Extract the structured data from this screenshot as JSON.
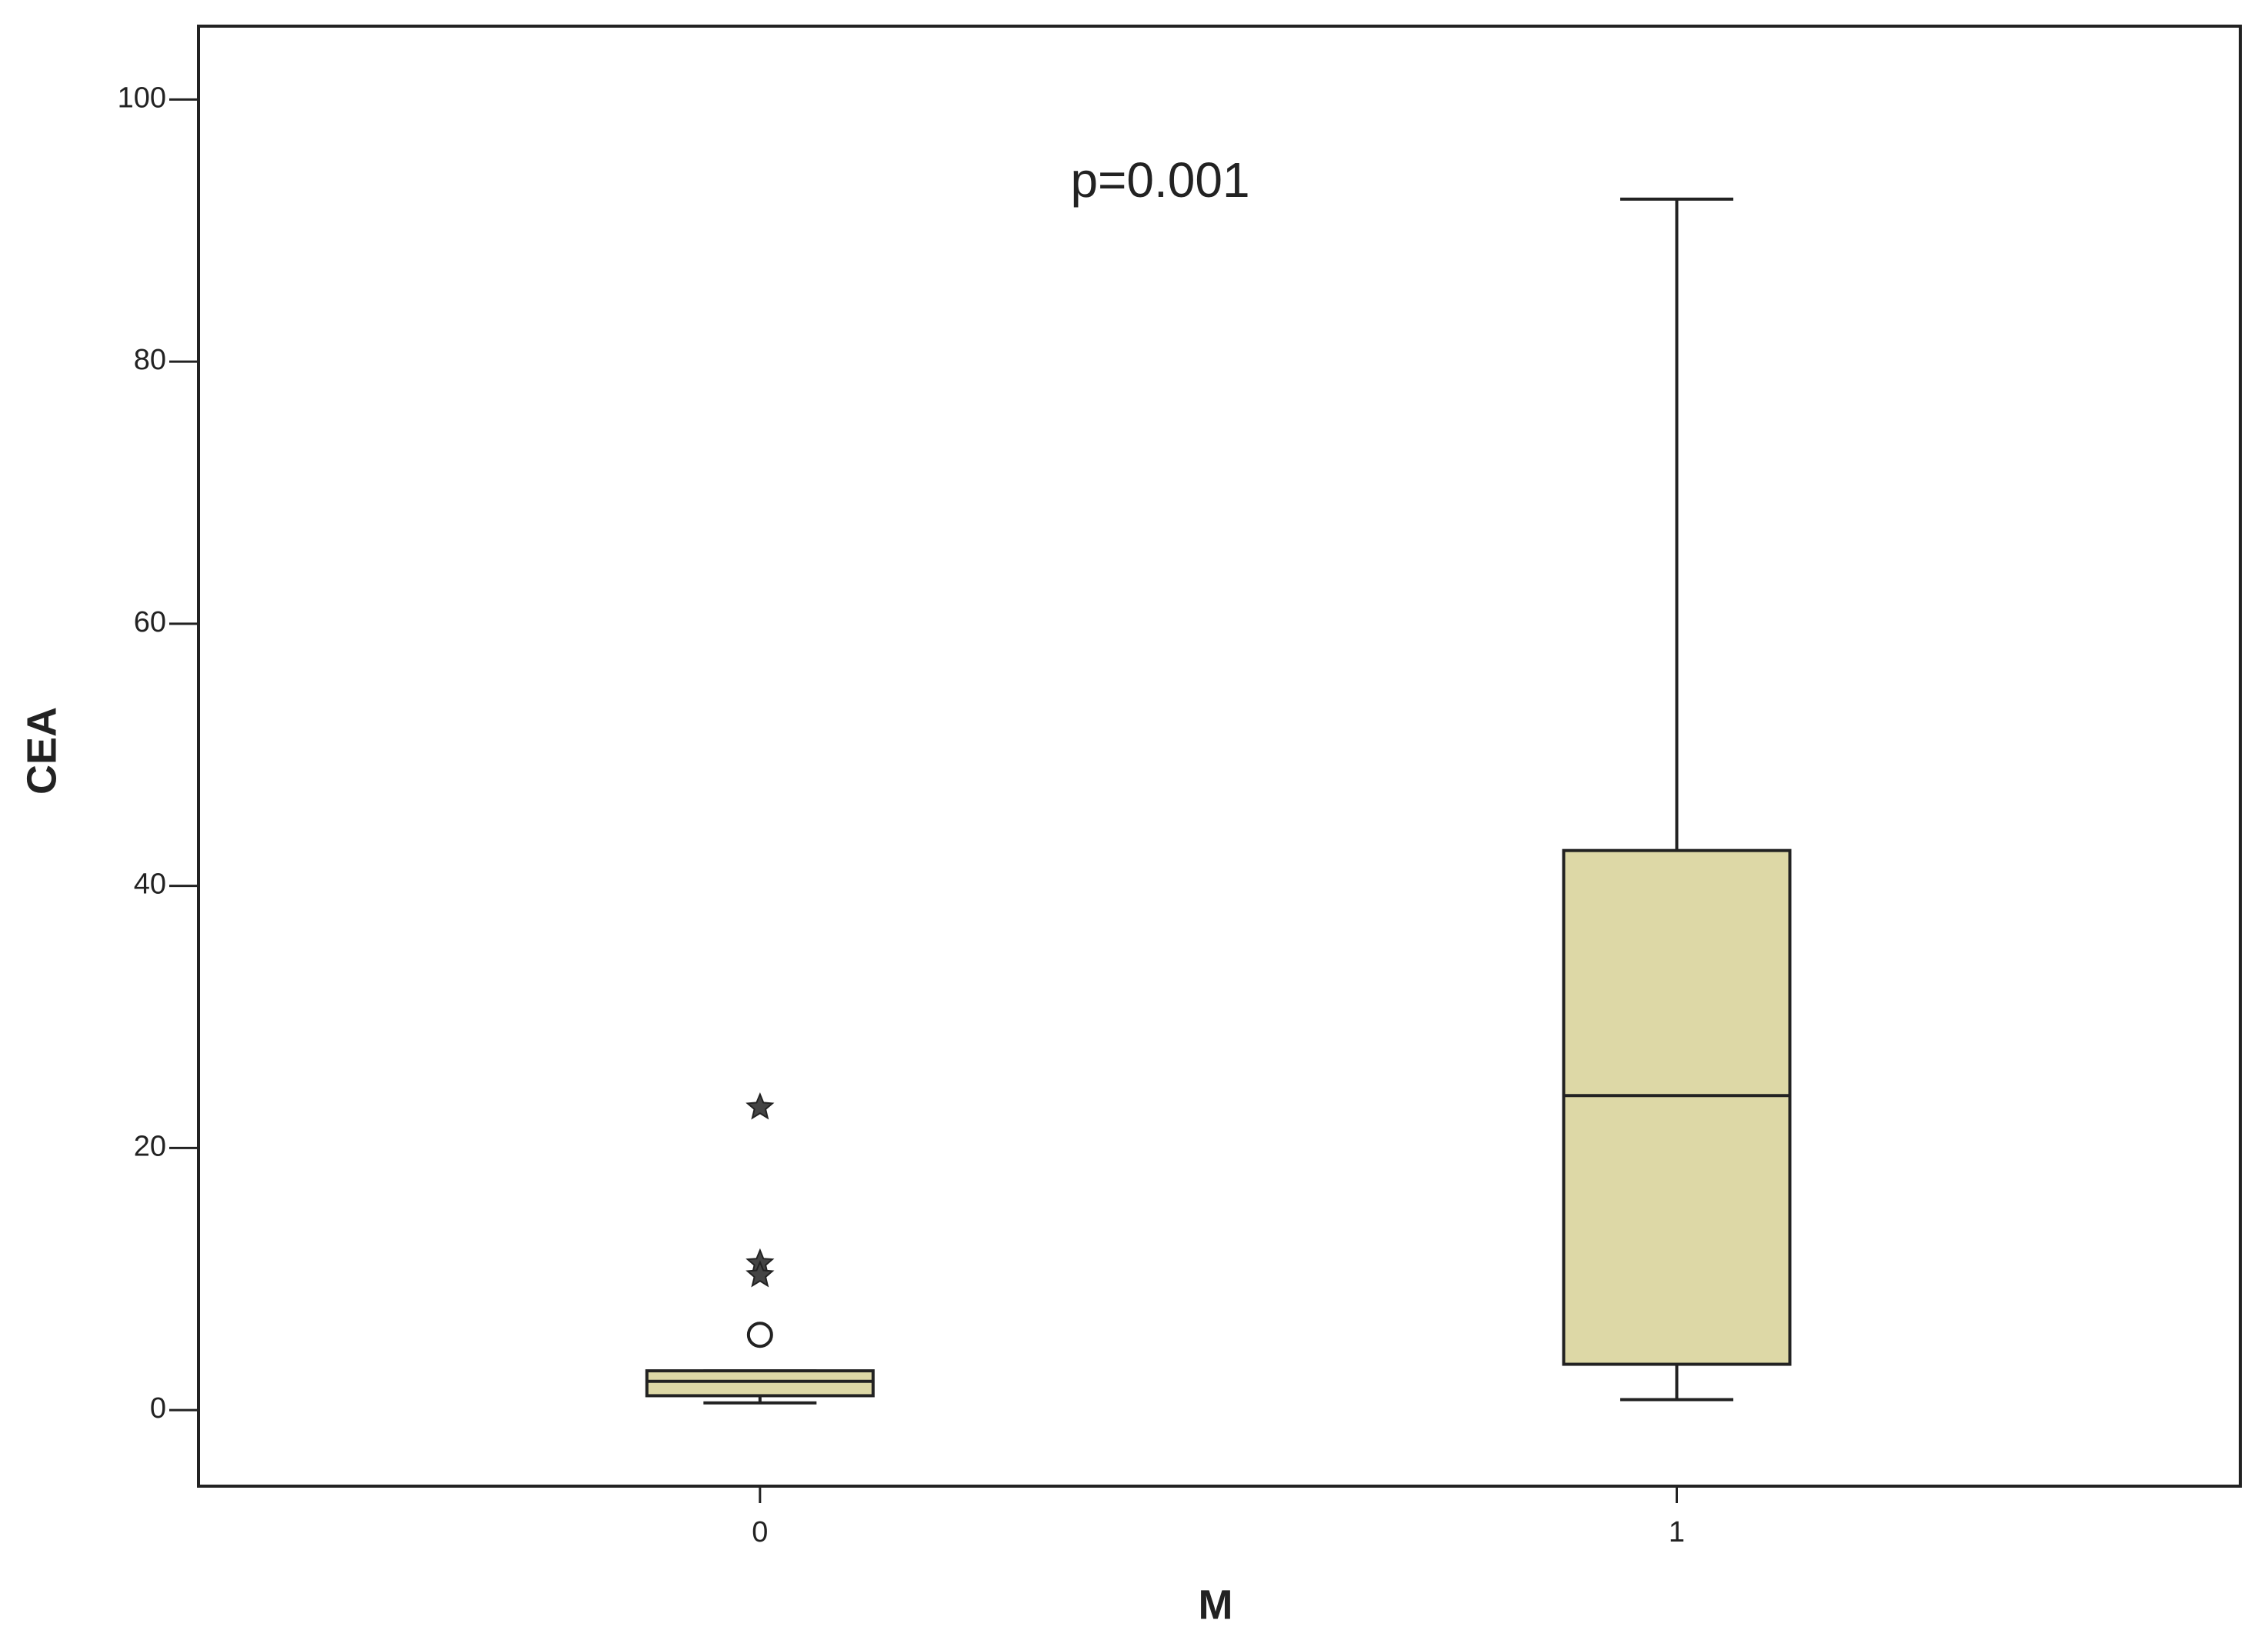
{
  "chart_data": {
    "type": "box",
    "annotation": "p=0.001",
    "x_label": "M",
    "y_label": "CEA",
    "categories": [
      "0",
      "1"
    ],
    "color": "#ddd8a6",
    "boxes": [
      {
        "whisker_low": 0.55,
        "q1": 1.1,
        "median": 2.2,
        "q3": 3.0,
        "whisker_high": 3.0,
        "outliers": [
          5.75
        ],
        "extremes": [
          23.1,
          11.2,
          10.3
        ]
      },
      {
        "whisker_low": 0.8,
        "q1": 3.5,
        "median": 24.0,
        "q3": 42.7,
        "whisker_high": 92.4,
        "outliers": [],
        "extremes": []
      }
    ],
    "ylim": [
      -5.8,
      105.6
    ],
    "yticks": [
      0,
      20,
      40,
      60,
      80,
      100
    ]
  }
}
